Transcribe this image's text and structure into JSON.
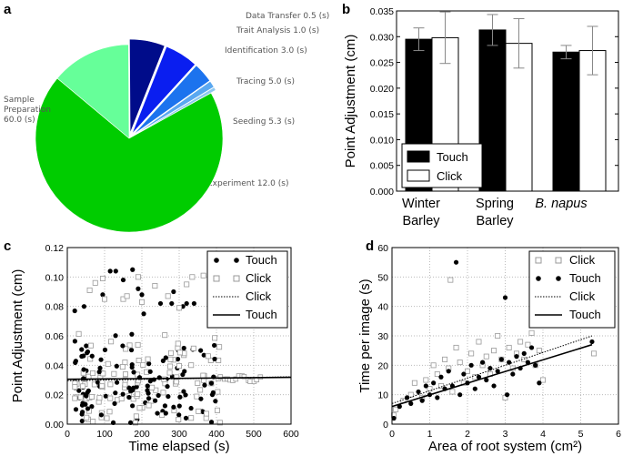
{
  "panels": {
    "a": "a",
    "b": "b",
    "c": "c",
    "d": "d"
  },
  "chart_data": [
    {
      "panel": "a",
      "type": "pie",
      "unit": "(s)",
      "slices": [
        {
          "name": "Data Transfer",
          "value": 0.5,
          "label": "Data Transfer  0.5 (s)",
          "color": "#8ec8f0"
        },
        {
          "name": "Trait Analysis",
          "value": 1.0,
          "label": "Trait Analysis  1.0 (s)",
          "color": "#5aa8f0"
        },
        {
          "name": "Identification",
          "value": 3.0,
          "label": "Identification  3.0 (s)",
          "color": "#1c73ee"
        },
        {
          "name": "Tracing",
          "value": 5.0,
          "label": "Tracing  5.0 (s)",
          "color": "#0a1ef0"
        },
        {
          "name": "Seeding",
          "value": 5.3,
          "label": "Seeding  5.3 (s)",
          "color": "#000c8a"
        },
        {
          "name": "Experiment",
          "value": 12.0,
          "label": "Experiment  12.0 (s)",
          "color": "#66ff99"
        },
        {
          "name": "Sample Preparation",
          "value": 60.0,
          "label_lines": [
            "Sample",
            "Preparation",
            "60.0 (s)"
          ],
          "color": "#00cc00"
        }
      ]
    },
    {
      "panel": "b",
      "type": "bar",
      "categories": [
        "Winter Barley",
        "Spring Barley",
        "B. napus"
      ],
      "category_lines": [
        [
          "Winter",
          "Barley"
        ],
        [
          "Spring",
          "Barley"
        ],
        [
          "B. napus"
        ]
      ],
      "ylabel": "Point Adjustment (cm)",
      "ylim": [
        0,
        0.035
      ],
      "yticks": [
        "0.000",
        "0.005",
        "0.010",
        "0.015",
        "0.020",
        "0.025",
        "0.030",
        "0.035"
      ],
      "series": [
        {
          "name": "Touch",
          "values": [
            0.0295,
            0.0313,
            0.027
          ],
          "errors": [
            0.0022,
            0.003,
            0.0013
          ],
          "color": "#000000"
        },
        {
          "name": "Click",
          "values": [
            0.0298,
            0.0287,
            0.0273
          ],
          "errors": [
            0.005,
            0.0048,
            0.0047
          ],
          "color": "#ffffff"
        }
      ],
      "legend": [
        "Touch",
        "Click"
      ]
    },
    {
      "panel": "c",
      "type": "scatter",
      "xlabel": "Time elapsed (s)",
      "ylabel": "Point Adjustment (cm)",
      "xlim": [
        0,
        600
      ],
      "ylim": [
        0,
        0.12
      ],
      "xticks": [
        "0",
        "100",
        "200",
        "300",
        "400",
        "500",
        "600"
      ],
      "yticks": [
        "0.00",
        "0.02",
        "0.04",
        "0.06",
        "0.08",
        "0.10",
        "0.12"
      ],
      "legend": [
        "Touch",
        "Click",
        "Click",
        "Touch"
      ],
      "touch_outliers": [
        [
          20,
          0.077
        ],
        [
          45,
          0.08
        ],
        [
          95,
          0.088
        ],
        [
          115,
          0.104
        ],
        [
          130,
          0.104
        ],
        [
          150,
          0.098
        ],
        [
          175,
          0.105
        ],
        [
          190,
          0.092
        ],
        [
          200,
          0.088
        ],
        [
          205,
          0.075
        ],
        [
          250,
          0.082
        ],
        [
          280,
          0.082
        ],
        [
          285,
          0.09
        ],
        [
          310,
          0.08
        ],
        [
          320,
          0.082
        ],
        [
          340,
          0.082
        ]
      ],
      "click_outliers": [
        [
          60,
          0.091
        ],
        [
          75,
          0.096
        ],
        [
          95,
          0.099
        ],
        [
          100,
          0.085
        ],
        [
          150,
          0.085
        ],
        [
          160,
          0.087
        ],
        [
          190,
          0.1
        ],
        [
          200,
          0.083
        ],
        [
          235,
          0.094
        ],
        [
          270,
          0.087
        ],
        [
          300,
          0.079
        ],
        [
          320,
          0.095
        ],
        [
          335,
          0.1
        ],
        [
          365,
          0.101
        ],
        [
          390,
          0.097
        ]
      ],
      "fits": [
        {
          "name": "Click",
          "style": "dotted",
          "points": [
            [
              0,
              0.0295
            ],
            [
              600,
              0.0322
            ]
          ]
        },
        {
          "name": "Touch",
          "style": "solid",
          "points": [
            [
              0,
              0.0305
            ],
            [
              600,
              0.0318
            ]
          ]
        }
      ]
    },
    {
      "panel": "d",
      "type": "scatter",
      "xlabel": "Area of root system (cm²)",
      "ylabel": "Time per image (s)",
      "xlim": [
        0,
        6
      ],
      "ylim": [
        0,
        60
      ],
      "xticks": [
        "0",
        "1",
        "2",
        "3",
        "4",
        "5",
        "6"
      ],
      "yticks": [
        "0",
        "10",
        "20",
        "30",
        "40",
        "50",
        "60"
      ],
      "legend": [
        "Click",
        "Touch",
        "Click",
        "Touch"
      ],
      "click_points": [
        [
          0.05,
          3
        ],
        [
          0.1,
          5
        ],
        [
          0.3,
          8
        ],
        [
          0.5,
          10
        ],
        [
          0.6,
          14
        ],
        [
          0.8,
          9
        ],
        [
          0.9,
          15
        ],
        [
          1.0,
          12
        ],
        [
          1.1,
          20
        ],
        [
          1.2,
          17
        ],
        [
          1.3,
          13
        ],
        [
          1.4,
          22
        ],
        [
          1.5,
          19
        ],
        [
          1.55,
          49
        ],
        [
          1.6,
          11
        ],
        [
          1.7,
          26
        ],
        [
          1.8,
          21
        ],
        [
          1.9,
          14
        ],
        [
          2.0,
          18
        ],
        [
          2.1,
          24
        ],
        [
          2.2,
          16
        ],
        [
          2.3,
          28
        ],
        [
          2.4,
          20
        ],
        [
          2.5,
          23
        ],
        [
          2.6,
          17
        ],
        [
          2.7,
          25
        ],
        [
          2.8,
          30
        ],
        [
          2.9,
          22
        ],
        [
          3.0,
          9
        ],
        [
          3.1,
          26
        ],
        [
          3.2,
          19
        ],
        [
          3.3,
          24
        ],
        [
          3.4,
          28
        ],
        [
          3.5,
          22
        ],
        [
          3.6,
          27
        ],
        [
          3.7,
          31
        ],
        [
          3.8,
          20
        ],
        [
          3.9,
          25
        ],
        [
          4.0,
          15
        ],
        [
          5.35,
          24
        ]
      ],
      "touch_points": [
        [
          0.05,
          2
        ],
        [
          0.2,
          6
        ],
        [
          0.4,
          9
        ],
        [
          0.5,
          7
        ],
        [
          0.7,
          11
        ],
        [
          0.8,
          8
        ],
        [
          0.9,
          13
        ],
        [
          1.0,
          10
        ],
        [
          1.1,
          14
        ],
        [
          1.2,
          9
        ],
        [
          1.3,
          16
        ],
        [
          1.4,
          12
        ],
        [
          1.5,
          18
        ],
        [
          1.6,
          13
        ],
        [
          1.7,
          55
        ],
        [
          1.8,
          10
        ],
        [
          1.9,
          17
        ],
        [
          2.0,
          14
        ],
        [
          2.1,
          20
        ],
        [
          2.2,
          12
        ],
        [
          2.3,
          16
        ],
        [
          2.4,
          21
        ],
        [
          2.5,
          15
        ],
        [
          2.6,
          19
        ],
        [
          2.7,
          13
        ],
        [
          2.8,
          18
        ],
        [
          2.9,
          22
        ],
        [
          3.0,
          43
        ],
        [
          3.05,
          10
        ],
        [
          3.1,
          21
        ],
        [
          3.2,
          17
        ],
        [
          3.3,
          23
        ],
        [
          3.4,
          19
        ],
        [
          3.5,
          24
        ],
        [
          3.6,
          21
        ],
        [
          3.7,
          26
        ],
        [
          3.8,
          20
        ],
        [
          3.9,
          14
        ],
        [
          5.3,
          28
        ]
      ],
      "fits": [
        {
          "name": "Click",
          "style": "dotted",
          "points": [
            [
              0,
              7
            ],
            [
              5.3,
              30
            ]
          ]
        },
        {
          "name": "Touch",
          "style": "solid",
          "points": [
            [
              0,
              6
            ],
            [
              5.3,
              27
            ]
          ]
        }
      ]
    }
  ]
}
